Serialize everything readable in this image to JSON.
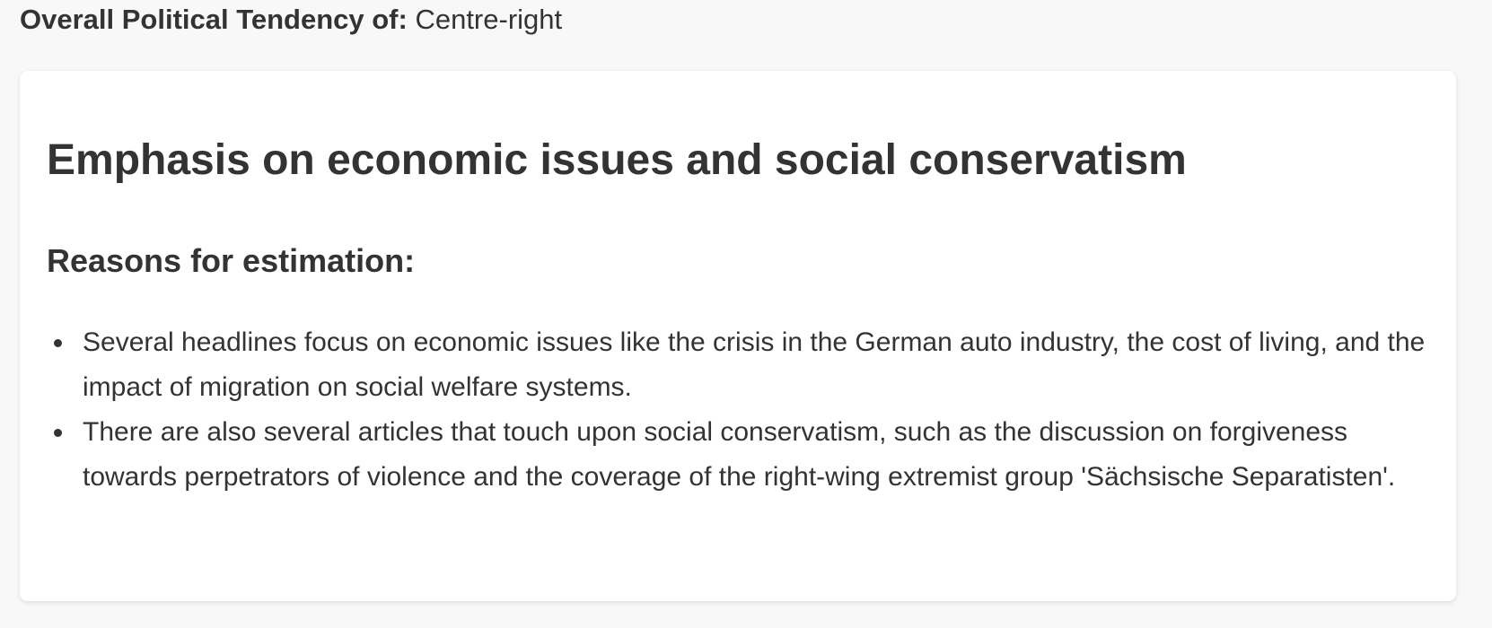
{
  "tendency": {
    "label": "Overall Political Tendency of:",
    "value": "Centre-right"
  },
  "card": {
    "title": "Emphasis on economic issues and social conservatism",
    "reasons_heading": "Reasons for estimation:",
    "reasons": [
      "Several headlines focus on economic issues like the crisis in the German auto industry, the cost of living, and the impact of migration on social welfare systems.",
      "There are also several articles that touch upon social conservatism, such as the discussion on forgiveness towards perpetrators of violence and the coverage of the right-wing extremist group 'Sächsische Separatisten'."
    ]
  }
}
